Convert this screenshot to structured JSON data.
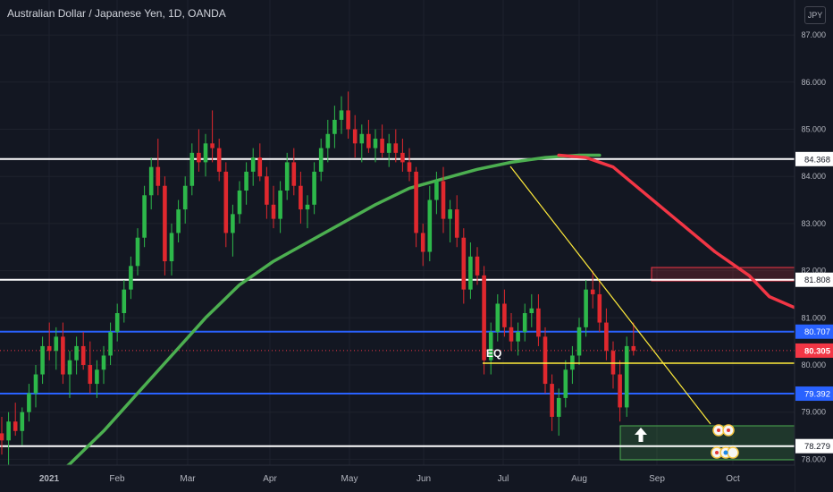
{
  "header": {
    "title": "Australian Dollar / Japanese Yen, 1D, OANDA",
    "unit": "JPY"
  },
  "chart_data": {
    "type": "candlestick",
    "title": "Australian Dollar / Japanese Yen, 1D, OANDA",
    "yaxis_unit": "JPY",
    "ylim": [
      77.75,
      87.8
    ],
    "y_ticks": [
      {
        "value": 87,
        "label": "87.000"
      },
      {
        "value": 86,
        "label": "86.000"
      },
      {
        "value": 85,
        "label": "85.000"
      },
      {
        "value": 84,
        "label": "84.000"
      },
      {
        "value": 83,
        "label": "83.000"
      },
      {
        "value": 82,
        "label": "82.000"
      },
      {
        "value": 81,
        "label": "81.000"
      },
      {
        "value": 80,
        "label": "80.000"
      },
      {
        "value": 79,
        "label": "79.000"
      },
      {
        "value": 78,
        "label": "78.000"
      }
    ],
    "x_ticks": [
      "2021",
      "Feb",
      "Mar",
      "Apr",
      "May",
      "Jun",
      "Jul",
      "Aug",
      "Sep",
      "Oct"
    ],
    "horizontal_levels": [
      {
        "value": 84.368,
        "label": "84.368",
        "color": "#ffffff"
      },
      {
        "value": 81.808,
        "label": "81.808",
        "color": "#ffffff"
      },
      {
        "value": 80.707,
        "label": "80.707",
        "color": "#2962ff"
      },
      {
        "value": 79.392,
        "label": "79.392",
        "color": "#2962ff"
      },
      {
        "value": 78.279,
        "label": "78.279",
        "color": "#ffffff"
      }
    ],
    "last_price": {
      "value": 80.305,
      "label": "80.305",
      "color": "#f23645"
    },
    "annotations": [
      {
        "text": "EQ",
        "value": 79.98
      }
    ],
    "moving_averages": [
      {
        "color": "#4caf50",
        "points": [
          [
            0,
            76.9
          ],
          [
            5,
            77.3
          ],
          [
            10,
            77.9
          ],
          [
            15,
            78.6
          ],
          [
            20,
            79.4
          ],
          [
            25,
            80.2
          ],
          [
            30,
            81.0
          ],
          [
            35,
            81.7
          ],
          [
            40,
            82.2
          ],
          [
            45,
            82.6
          ],
          [
            50,
            83.0
          ],
          [
            55,
            83.4
          ],
          [
            60,
            83.75
          ],
          [
            65,
            83.95
          ],
          [
            70,
            84.15
          ],
          [
            75,
            84.3
          ],
          [
            80,
            84.4
          ],
          [
            85,
            84.45
          ],
          [
            88,
            84.45
          ]
        ]
      },
      {
        "color": "#f23645",
        "points": [
          [
            82,
            84.45
          ],
          [
            86,
            84.4
          ],
          [
            90,
            84.2
          ],
          [
            95,
            83.6
          ],
          [
            100,
            83.0
          ],
          [
            105,
            82.4
          ],
          [
            110,
            81.9
          ],
          [
            113,
            81.45
          ],
          [
            117,
            81.2
          ],
          [
            120,
            80.95
          ],
          [
            124,
            80.75
          ],
          [
            126,
            80.55
          ]
        ]
      }
    ],
    "candles_ohlc": [
      [
        78.55,
        78.9,
        78.1,
        78.4
      ],
      [
        78.4,
        79.0,
        77.8,
        78.8
      ],
      [
        78.8,
        79.2,
        78.5,
        78.6
      ],
      [
        78.6,
        79.1,
        78.3,
        79.0
      ],
      [
        79.0,
        79.6,
        78.8,
        79.4
      ],
      [
        79.4,
        80.0,
        79.1,
        79.8
      ],
      [
        79.8,
        80.6,
        79.6,
        80.4
      ],
      [
        80.4,
        80.9,
        80.1,
        80.3
      ],
      [
        80.3,
        80.8,
        79.9,
        80.6
      ],
      [
        80.6,
        80.9,
        79.6,
        79.8
      ],
      [
        79.8,
        80.3,
        79.3,
        80.1
      ],
      [
        80.1,
        80.6,
        79.8,
        80.4
      ],
      [
        80.4,
        80.7,
        79.9,
        80.0
      ],
      [
        80.0,
        80.5,
        79.4,
        79.6
      ],
      [
        79.6,
        80.1,
        79.3,
        79.9
      ],
      [
        79.9,
        80.4,
        79.6,
        80.2
      ],
      [
        80.2,
        80.9,
        80.0,
        80.7
      ],
      [
        80.7,
        81.3,
        80.5,
        81.1
      ],
      [
        81.1,
        81.8,
        80.9,
        81.6
      ],
      [
        81.6,
        82.3,
        81.4,
        82.1
      ],
      [
        82.1,
        82.9,
        81.9,
        82.7
      ],
      [
        82.7,
        83.8,
        82.5,
        83.6
      ],
      [
        83.6,
        84.4,
        83.3,
        84.2
      ],
      [
        84.2,
        84.8,
        83.6,
        83.8
      ],
      [
        83.8,
        84.0,
        81.9,
        82.2
      ],
      [
        82.2,
        83.0,
        81.9,
        82.8
      ],
      [
        82.8,
        83.5,
        82.6,
        83.3
      ],
      [
        83.3,
        84.0,
        83.0,
        83.8
      ],
      [
        83.8,
        84.7,
        83.6,
        84.5
      ],
      [
        84.5,
        85.0,
        84.1,
        84.3
      ],
      [
        84.3,
        84.9,
        84.0,
        84.7
      ],
      [
        84.7,
        85.4,
        84.3,
        84.6
      ],
      [
        84.6,
        84.8,
        83.9,
        84.1
      ],
      [
        84.1,
        84.3,
        82.5,
        82.8
      ],
      [
        82.8,
        83.4,
        82.3,
        83.2
      ],
      [
        83.2,
        83.9,
        83.0,
        83.7
      ],
      [
        83.7,
        84.3,
        83.4,
        84.1
      ],
      [
        84.1,
        84.6,
        83.8,
        84.4
      ],
      [
        84.4,
        84.7,
        83.9,
        84.0
      ],
      [
        84.0,
        84.2,
        83.1,
        83.4
      ],
      [
        83.4,
        83.8,
        82.9,
        83.1
      ],
      [
        83.1,
        83.9,
        82.8,
        83.7
      ],
      [
        83.7,
        84.5,
        83.5,
        84.3
      ],
      [
        84.3,
        84.6,
        83.6,
        83.8
      ],
      [
        83.8,
        84.1,
        83.0,
        83.3
      ],
      [
        83.3,
        83.6,
        82.9,
        83.4
      ],
      [
        83.4,
        84.3,
        83.2,
        84.1
      ],
      [
        84.1,
        84.8,
        83.9,
        84.6
      ],
      [
        84.6,
        85.2,
        84.3,
        84.9
      ],
      [
        84.9,
        85.5,
        84.6,
        85.2
      ],
      [
        85.2,
        85.7,
        84.9,
        85.4
      ],
      [
        85.4,
        85.8,
        84.8,
        85.0
      ],
      [
        85.0,
        85.3,
        84.4,
        84.7
      ],
      [
        84.7,
        85.1,
        84.3,
        84.9
      ],
      [
        84.9,
        85.2,
        84.5,
        84.6
      ],
      [
        84.6,
        85.0,
        84.3,
        84.8
      ],
      [
        84.8,
        85.1,
        84.4,
        84.5
      ],
      [
        84.5,
        84.9,
        84.2,
        84.7
      ],
      [
        84.7,
        85.0,
        84.3,
        84.5
      ],
      [
        84.5,
        84.8,
        84.1,
        84.3
      ],
      [
        84.3,
        84.6,
        83.9,
        84.1
      ],
      [
        84.1,
        84.2,
        82.5,
        82.8
      ],
      [
        82.8,
        83.0,
        82.1,
        82.4
      ],
      [
        82.4,
        83.8,
        82.2,
        83.5
      ],
      [
        83.5,
        84.1,
        83.2,
        83.9
      ],
      [
        83.9,
        84.2,
        82.8,
        83.1
      ],
      [
        83.1,
        83.5,
        82.6,
        83.3
      ],
      [
        83.3,
        83.6,
        82.5,
        82.7
      ],
      [
        82.7,
        82.9,
        81.3,
        81.6
      ],
      [
        81.6,
        82.6,
        81.4,
        82.3
      ],
      [
        82.3,
        82.5,
        81.7,
        81.9
      ],
      [
        81.9,
        82.1,
        79.8,
        80.1
      ],
      [
        80.1,
        80.9,
        79.8,
        80.7
      ],
      [
        80.7,
        81.5,
        80.5,
        81.3
      ],
      [
        81.3,
        81.6,
        80.6,
        80.8
      ],
      [
        80.8,
        81.1,
        80.3,
        80.5
      ],
      [
        80.5,
        80.9,
        80.2,
        80.7
      ],
      [
        80.7,
        81.3,
        80.5,
        81.1
      ],
      [
        81.1,
        81.5,
        80.8,
        81.2
      ],
      [
        81.2,
        81.5,
        80.4,
        80.6
      ],
      [
        80.6,
        80.8,
        79.4,
        79.6
      ],
      [
        79.6,
        79.8,
        78.6,
        78.9
      ],
      [
        78.9,
        79.5,
        78.5,
        79.3
      ],
      [
        79.3,
        80.1,
        79.1,
        79.9
      ],
      [
        79.9,
        80.4,
        79.6,
        80.2
      ],
      [
        80.2,
        81.0,
        80.0,
        80.8
      ],
      [
        80.8,
        81.8,
        80.6,
        81.6
      ],
      [
        81.6,
        82.0,
        81.2,
        81.5
      ],
      [
        81.5,
        81.8,
        80.7,
        80.9
      ],
      [
        80.9,
        81.2,
        80.1,
        80.3
      ],
      [
        80.3,
        80.5,
        79.5,
        79.8
      ],
      [
        79.8,
        80.1,
        78.8,
        79.1
      ],
      [
        79.1,
        80.6,
        78.9,
        80.4
      ],
      [
        80.4,
        80.9,
        80.2,
        80.3
      ]
    ]
  }
}
